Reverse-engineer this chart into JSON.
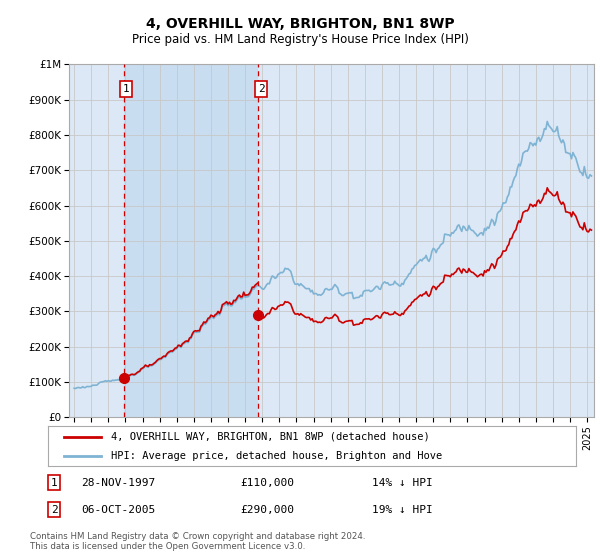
{
  "title": "4, OVERHILL WAY, BRIGHTON, BN1 8WP",
  "subtitle": "Price paid vs. HM Land Registry's House Price Index (HPI)",
  "legend_line1": "4, OVERHILL WAY, BRIGHTON, BN1 8WP (detached house)",
  "legend_line2": "HPI: Average price, detached house, Brighton and Hove",
  "sale1_date": "28-NOV-1997",
  "sale1_price": 110000,
  "sale1_label": "14% ↓ HPI",
  "sale2_date": "06-OCT-2005",
  "sale2_price": 290000,
  "sale2_label": "19% ↓ HPI",
  "footer": "Contains HM Land Registry data © Crown copyright and database right 2024.\nThis data is licensed under the Open Government Licence v3.0.",
  "ylim": [
    0,
    1000000
  ],
  "yticks": [
    0,
    100000,
    200000,
    300000,
    400000,
    500000,
    600000,
    700000,
    800000,
    900000,
    1000000
  ],
  "ytick_labels": [
    "£0",
    "£100K",
    "£200K",
    "£300K",
    "£400K",
    "£500K",
    "£600K",
    "£700K",
    "£800K",
    "£900K",
    "£1M"
  ],
  "hpi_color": "#7fb3d3",
  "price_color": "#cc0000",
  "sale_marker_color": "#cc0000",
  "dashed_line_color": "#cc0000",
  "bg_color": "#dce8f5",
  "shade_color": "#c8ddf0",
  "plot_bg": "#ffffff",
  "grid_color": "#c8c8c8",
  "sale1_year": 1997.9,
  "sale2_year": 2005.78
}
